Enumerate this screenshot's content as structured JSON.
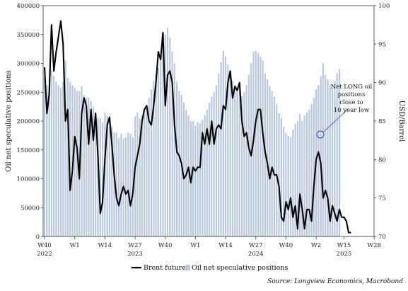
{
  "chart_data": {
    "type": "bar+line",
    "title": "",
    "ylabel_left": "Oil net speculative positions",
    "ylabel_right": "USD/Barrel",
    "ylim_left": [
      0,
      400000
    ],
    "ylim_right": [
      70,
      100
    ],
    "yticks_left": [
      "0",
      "50000",
      "100000",
      "150000",
      "200000",
      "250000",
      "300000",
      "350000",
      "400000"
    ],
    "yticks_right": [
      "70",
      "75",
      "80",
      "85",
      "90",
      "95",
      "100"
    ],
    "x_week_range": [
      0,
      142
    ],
    "x_ticks": [
      {
        "week": 0,
        "label": "W40",
        "year": "2022"
      },
      {
        "week": 13,
        "label": "W1",
        "year": ""
      },
      {
        "week": 26,
        "label": "W14",
        "year": ""
      },
      {
        "week": 39,
        "label": "W27",
        "year": "2023"
      },
      {
        "week": 52,
        "label": "W40",
        "year": ""
      },
      {
        "week": 65,
        "label": "W1",
        "year": ""
      },
      {
        "week": 78,
        "label": "W14",
        "year": ""
      },
      {
        "week": 91,
        "label": "W27",
        "year": "2024"
      },
      {
        "week": 104,
        "label": "W40",
        "year": ""
      },
      {
        "week": 117,
        "label": "W2",
        "year": ""
      },
      {
        "week": 129,
        "label": "W15",
        "year": "2025"
      },
      {
        "week": 142,
        "label": "W28",
        "year": ""
      }
    ],
    "series": [
      {
        "name": "Oil net speculative positions",
        "type": "bar",
        "axis": "left",
        "color": "#b8c9de",
        "values": [
          275000,
          262000,
          250000,
          288000,
          278000,
          268000,
          262000,
          258000,
          268000,
          305000,
          275000,
          268000,
          262000,
          258000,
          252000,
          252000,
          260000,
          245000,
          240000,
          240000,
          235000,
          225000,
          215000,
          205000,
          205000,
          198000,
          215000,
          210000,
          200000,
          190000,
          180000,
          180000,
          170000,
          178000,
          170000,
          172000,
          180000,
          178000,
          172000,
          208000,
          215000,
          205000,
          210000,
          215000,
          222000,
          240000,
          255000,
          270000,
          282000,
          292000,
          305000,
          335000,
          350000,
          362000,
          345000,
          320000,
          300000,
          268000,
          252000,
          245000,
          232000,
          220000,
          210000,
          200000,
          200000,
          192000,
          198000,
          196000,
          202000,
          210000,
          220000,
          232000,
          242000,
          250000,
          262000,
          282000,
          302000,
          322000,
          312000,
          298000,
          282000,
          270000,
          262000,
          258000,
          250000,
          243000,
          250000,
          263000,
          280000,
          300000,
          320000,
          322000,
          318000,
          312000,
          305000,
          282000,
          272000,
          260000,
          252000,
          242000,
          230000,
          214000,
          205000,
          190000,
          180000,
          175000,
          172000,
          185000,
          195000,
          200000,
          212000,
          200000,
          210000,
          215000,
          220000,
          230000,
          240000,
          255000,
          262000,
          278000,
          300000,
          280000,
          272000,
          262000,
          258000,
          270000,
          283000,
          290000
        ]
      },
      {
        "name": "Brent futures",
        "type": "line",
        "axis": "right",
        "color": "#000000",
        "values": [
          92.0,
          86.0,
          88.5,
          97.5,
          91.5,
          94.0,
          96.0,
          98.0,
          95.0,
          85.0,
          86.5,
          76.0,
          78.5,
          83.0,
          81.5,
          77.5,
          86.0,
          88.0,
          87.0,
          82.0,
          86.5,
          82.5,
          86.0,
          80.5,
          73.0,
          74.5,
          80.0,
          84.5,
          85.5,
          82.0,
          78.0,
          75.0,
          74.0,
          75.5,
          76.5,
          75.5,
          76.0,
          74.0,
          75.5,
          79.0,
          80.5,
          82.0,
          85.0,
          86.5,
          87.0,
          85.0,
          84.5,
          87.0,
          90.0,
          94.0,
          93.0,
          96.5,
          87.0,
          91.0,
          91.5,
          90.0,
          84.5,
          81.0,
          80.5,
          79.5,
          77.5,
          78.0,
          79.0,
          77.0,
          79.0,
          78.5,
          79.0,
          79.0,
          83.5,
          82.0,
          84.0,
          82.0,
          85.0,
          82.0,
          84.0,
          84.5,
          84.0,
          87.0,
          86.5,
          90.0,
          91.5,
          88.0,
          89.5,
          89.0,
          90.0,
          85.0,
          83.0,
          83.5,
          81.5,
          80.5,
          82.5,
          85.0,
          86.5,
          86.5,
          83.5,
          81.0,
          79.5,
          77.5,
          79.0,
          78.0,
          78.0,
          76.5,
          72.5,
          72.0,
          74.5,
          73.5,
          75.0,
          72.5,
          74.0,
          71.0,
          75.5,
          73.5,
          71.0,
          73.5,
          73.5,
          72.0,
          76.5,
          80.0,
          81.0,
          79.5,
          75.0,
          76.0,
          75.0,
          72.0,
          74.0,
          73.0,
          72.0,
          73.5,
          72.5,
          72.5,
          72.0,
          70.5,
          70.5
        ]
      }
    ],
    "annotation": {
      "lines": [
        "Net LONG oil",
        "positions",
        "close to",
        "10 year low"
      ]
    },
    "legend": {
      "placement": "bottom-center"
    },
    "source": "Source: Longview Economics, Macrobond"
  }
}
